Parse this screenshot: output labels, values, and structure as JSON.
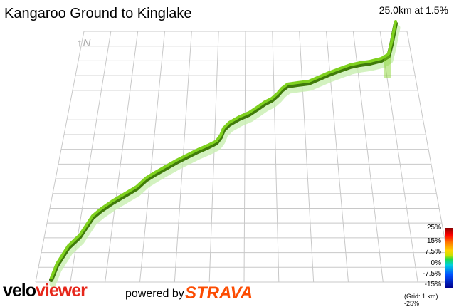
{
  "header": {
    "title": "Kangaroo Ground to Kinglake",
    "stats": "25.0km at 1.5%"
  },
  "compass": {
    "label": "↑N"
  },
  "branding": {
    "velo": "velo",
    "viewer": "viewer",
    "powered_by": "powered by",
    "strava": "STRAVA"
  },
  "legend": {
    "labels": [
      "25%",
      "15%",
      "7.5%",
      "0%",
      "-7.5%",
      "-15%",
      "-25%"
    ],
    "grid_note": "(Grid: 1 km)"
  },
  "colors": {
    "route_main": "#7fd11f",
    "route_dark": "#3f7a0a",
    "route_shadow": "#c8efb0",
    "grid": "#c8c8c8",
    "strava": "#fc4c02",
    "viewer": "#e6271b"
  }
}
